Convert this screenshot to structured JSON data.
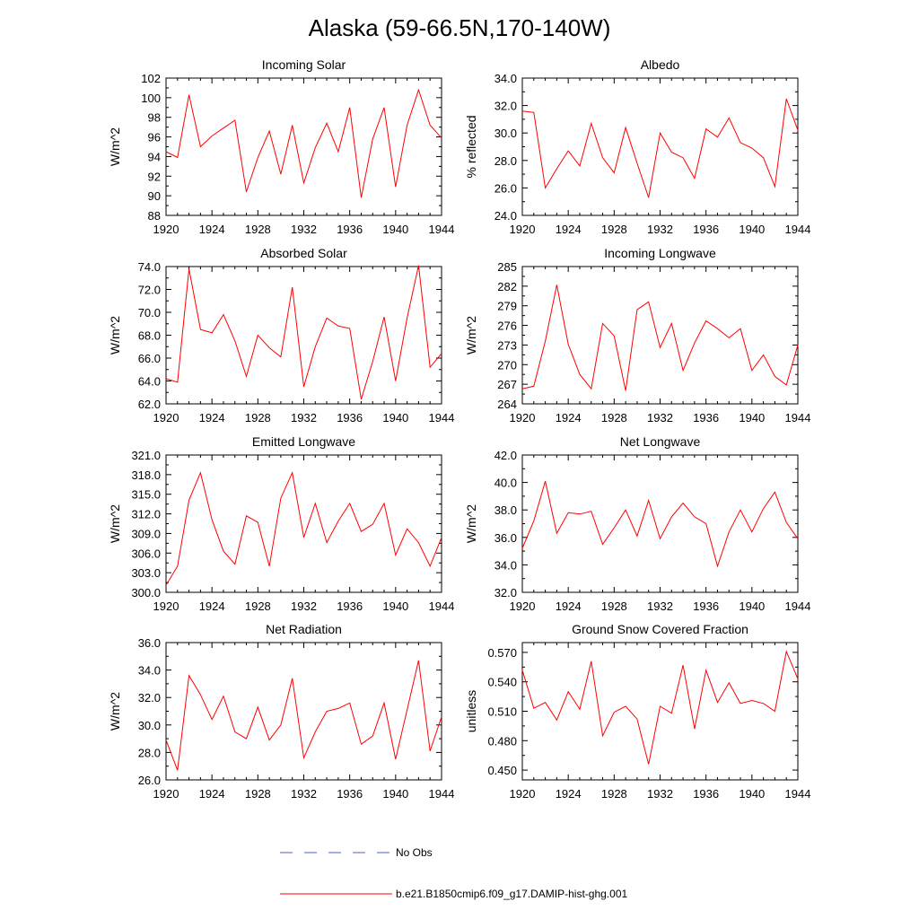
{
  "title": "Alaska (59-66.5N,170-140W)",
  "colors": {
    "series": "#ff0000",
    "no_obs": "#4c5fd1",
    "axis": "#000000"
  },
  "legend": {
    "no_obs_label": "No Obs",
    "model_label": "b.e21.B1850cmip6.f09_g17.DAMIP-hist-ghg.001"
  },
  "chart_data": [
    {
      "type": "line",
      "title": "Incoming Solar",
      "ylabel": "W/m^2",
      "xlim": [
        1920,
        1944
      ],
      "ylim": [
        88,
        102
      ],
      "xticks": [
        "1920",
        "1924",
        "1928",
        "1932",
        "1936",
        "1940",
        "1944"
      ],
      "yticks": [
        "88",
        "90",
        "92",
        "94",
        "96",
        "98",
        "100",
        "102"
      ],
      "x": [
        1920,
        1921,
        1922,
        1923,
        1924,
        1925,
        1926,
        1927,
        1928,
        1929,
        1930,
        1931,
        1932,
        1933,
        1934,
        1935,
        1936,
        1937,
        1938,
        1939,
        1940,
        1941,
        1942,
        1943,
        1944
      ],
      "series": [
        {
          "values": [
            94.5,
            93.9,
            100.3,
            95.0,
            96.1,
            96.9,
            97.7,
            90.4,
            93.9,
            96.6,
            92.2,
            97.2,
            91.3,
            94.9,
            97.4,
            94.5,
            99.0,
            89.8,
            95.8,
            99.0,
            90.9,
            97.2,
            100.8,
            97.2,
            95.9
          ]
        }
      ]
    },
    {
      "type": "line",
      "title": "Albedo",
      "ylabel": "% reflected",
      "xlim": [
        1920,
        1944
      ],
      "ylim": [
        24,
        34
      ],
      "xticks": [
        "1920",
        "1924",
        "1928",
        "1932",
        "1936",
        "1940",
        "1944"
      ],
      "yticks": [
        "24.0",
        "26.0",
        "28.0",
        "30.0",
        "32.0",
        "34.0"
      ],
      "x": [
        1920,
        1921,
        1922,
        1923,
        1924,
        1925,
        1926,
        1927,
        1928,
        1929,
        1930,
        1931,
        1932,
        1933,
        1934,
        1935,
        1936,
        1937,
        1938,
        1939,
        1940,
        1941,
        1942,
        1943,
        1944
      ],
      "series": [
        {
          "values": [
            31.6,
            31.5,
            26.0,
            27.4,
            28.7,
            27.6,
            30.7,
            28.2,
            27.1,
            30.4,
            27.8,
            25.3,
            30.0,
            28.6,
            28.2,
            26.7,
            30.3,
            29.7,
            31.1,
            29.3,
            28.9,
            28.2,
            26.1,
            32.5,
            30.2
          ]
        }
      ]
    },
    {
      "type": "line",
      "title": "Absorbed Solar",
      "ylabel": "W/m^2",
      "xlim": [
        1920,
        1944
      ],
      "ylim": [
        62,
        74
      ],
      "xticks": [
        "1920",
        "1924",
        "1928",
        "1932",
        "1936",
        "1940",
        "1944"
      ],
      "yticks": [
        "62.0",
        "64.0",
        "66.0",
        "68.0",
        "70.0",
        "72.0",
        "74.0"
      ],
      "x": [
        1920,
        1921,
        1922,
        1923,
        1924,
        1925,
        1926,
        1927,
        1928,
        1929,
        1930,
        1931,
        1932,
        1933,
        1934,
        1935,
        1936,
        1937,
        1938,
        1939,
        1940,
        1941,
        1942,
        1943,
        1944
      ],
      "series": [
        {
          "values": [
            64.2,
            63.9,
            73.8,
            68.5,
            68.2,
            69.8,
            67.5,
            64.4,
            68.0,
            66.9,
            66.1,
            72.2,
            63.5,
            67.0,
            69.5,
            68.8,
            68.6,
            62.4,
            65.7,
            69.6,
            64.0,
            69.5,
            74.1,
            65.2,
            66.4
          ]
        }
      ]
    },
    {
      "type": "line",
      "title": "Incoming Longwave",
      "ylabel": "W/m^2",
      "xlim": [
        1920,
        1944
      ],
      "ylim": [
        264,
        285
      ],
      "xticks": [
        "1920",
        "1924",
        "1928",
        "1932",
        "1936",
        "1940",
        "1944"
      ],
      "yticks": [
        "264",
        "267",
        "270",
        "273",
        "276",
        "279",
        "282",
        "285"
      ],
      "x": [
        1920,
        1921,
        1922,
        1923,
        1924,
        1925,
        1926,
        1927,
        1928,
        1929,
        1930,
        1931,
        1932,
        1933,
        1934,
        1935,
        1936,
        1937,
        1938,
        1939,
        1940,
        1941,
        1942,
        1943,
        1944
      ],
      "series": [
        {
          "values": [
            266.3,
            266.7,
            273.6,
            282.2,
            273.1,
            268.5,
            266.3,
            276.3,
            274.4,
            266.0,
            278.4,
            279.6,
            272.6,
            276.3,
            269.1,
            273.3,
            276.7,
            275.5,
            274.1,
            275.5,
            269.1,
            271.5,
            268.2,
            266.9,
            273.0
          ]
        }
      ]
    },
    {
      "type": "line",
      "title": "Emitted Longwave",
      "ylabel": "W/m^2",
      "xlim": [
        1920,
        1944
      ],
      "ylim": [
        300,
        321
      ],
      "xticks": [
        "1920",
        "1924",
        "1928",
        "1932",
        "1936",
        "1940",
        "1944"
      ],
      "yticks": [
        "300.0",
        "303.0",
        "306.0",
        "309.0",
        "312.0",
        "315.0",
        "318.0",
        "321.0"
      ],
      "x": [
        1920,
        1921,
        1922,
        1923,
        1924,
        1925,
        1926,
        1927,
        1928,
        1929,
        1930,
        1931,
        1932,
        1933,
        1934,
        1935,
        1936,
        1937,
        1938,
        1939,
        1940,
        1941,
        1942,
        1943,
        1944
      ],
      "series": [
        {
          "values": [
            301.1,
            304.0,
            314.1,
            318.3,
            311.1,
            306.3,
            304.3,
            311.7,
            310.7,
            304.0,
            314.4,
            318.3,
            308.4,
            313.6,
            307.6,
            310.9,
            313.6,
            309.3,
            310.4,
            313.6,
            305.7,
            309.7,
            307.6,
            304.0,
            308.4
          ]
        }
      ]
    },
    {
      "type": "line",
      "title": "Net Longwave",
      "ylabel": "W/m^2",
      "xlim": [
        1920,
        1944
      ],
      "ylim": [
        32,
        42
      ],
      "xticks": [
        "1920",
        "1924",
        "1928",
        "1932",
        "1936",
        "1940",
        "1944"
      ],
      "yticks": [
        "32.0",
        "34.0",
        "36.0",
        "38.0",
        "40.0",
        "42.0"
      ],
      "x": [
        1920,
        1921,
        1922,
        1923,
        1924,
        1925,
        1926,
        1927,
        1928,
        1929,
        1930,
        1931,
        1932,
        1933,
        1934,
        1935,
        1936,
        1937,
        1938,
        1939,
        1940,
        1941,
        1942,
        1943,
        1944
      ],
      "series": [
        {
          "values": [
            35.2,
            37.2,
            40.1,
            36.3,
            37.8,
            37.7,
            37.9,
            35.5,
            36.7,
            38.0,
            36.1,
            38.7,
            35.9,
            37.5,
            38.5,
            37.5,
            37.0,
            33.9,
            36.4,
            38.0,
            36.4,
            38.1,
            39.3,
            37.1,
            35.9
          ]
        }
      ]
    },
    {
      "type": "line",
      "title": "Net Radiation",
      "ylabel": "W/m^2",
      "xlim": [
        1920,
        1944
      ],
      "ylim": [
        26,
        36
      ],
      "xticks": [
        "1920",
        "1924",
        "1928",
        "1932",
        "1936",
        "1940",
        "1944"
      ],
      "yticks": [
        "26.0",
        "28.0",
        "30.0",
        "32.0",
        "34.0",
        "36.0"
      ],
      "x": [
        1920,
        1921,
        1922,
        1923,
        1924,
        1925,
        1926,
        1927,
        1928,
        1929,
        1930,
        1931,
        1932,
        1933,
        1934,
        1935,
        1936,
        1937,
        1938,
        1939,
        1940,
        1941,
        1942,
        1943,
        1944
      ],
      "series": [
        {
          "values": [
            28.9,
            26.7,
            33.6,
            32.2,
            30.4,
            32.1,
            29.5,
            29.0,
            31.3,
            28.9,
            30.0,
            33.4,
            27.6,
            29.5,
            31.0,
            31.2,
            31.6,
            28.6,
            29.2,
            31.6,
            27.5,
            31.1,
            34.7,
            28.1,
            30.6
          ]
        }
      ]
    },
    {
      "type": "line",
      "title": "Ground Snow Covered Fraction",
      "ylabel": "unitless",
      "xlim": [
        1920,
        1944
      ],
      "ylim": [
        0.44,
        0.58
      ],
      "xticks": [
        "1920",
        "1924",
        "1928",
        "1932",
        "1936",
        "1940",
        "1944"
      ],
      "yticks": [
        "0.450",
        "0.480",
        "0.510",
        "0.540",
        "0.570"
      ],
      "ytick_values": [
        0.45,
        0.48,
        0.51,
        0.54,
        0.57
      ],
      "x": [
        1920,
        1921,
        1922,
        1923,
        1924,
        1925,
        1926,
        1927,
        1928,
        1929,
        1930,
        1931,
        1932,
        1933,
        1934,
        1935,
        1936,
        1937,
        1938,
        1939,
        1940,
        1941,
        1942,
        1943,
        1944
      ],
      "series": [
        {
          "values": [
            0.552,
            0.513,
            0.519,
            0.501,
            0.53,
            0.512,
            0.561,
            0.485,
            0.509,
            0.515,
            0.502,
            0.456,
            0.515,
            0.508,
            0.557,
            0.492,
            0.552,
            0.519,
            0.539,
            0.518,
            0.521,
            0.518,
            0.51,
            0.571,
            0.543
          ]
        }
      ]
    }
  ]
}
